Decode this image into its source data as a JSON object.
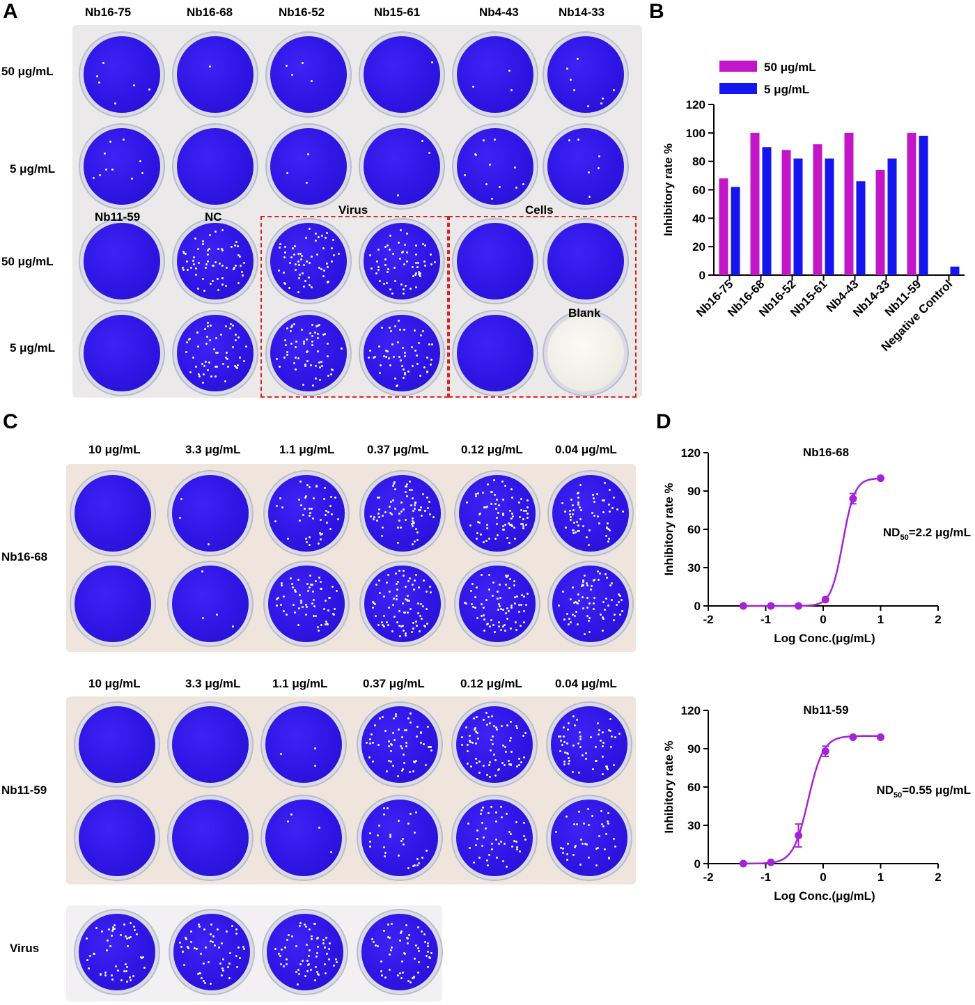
{
  "panel_letters": {
    "a": "A",
    "b": "B",
    "c": "C",
    "d": "D"
  },
  "panel_a": {
    "column_headers": [
      "Nb16-75",
      "Nb16-68",
      "Nb16-52",
      "Nb15-61",
      "Nb4-43",
      "Nb14-33"
    ],
    "row_labels": [
      "50 μg/mL",
      "5 μg/mL",
      "50 μg/mL",
      "5 μg/mL"
    ],
    "inner_labels": {
      "nb11": "Nb11-59",
      "nc": "NC",
      "virus": "Virus",
      "cells": "Cells",
      "blank": "Blank"
    }
  },
  "panel_c": {
    "conc_headers": [
      "10 μg/mL",
      "3.3 μg/mL",
      "1.1 μg/mL",
      "0.37 μg/mL",
      "0.12 μg/mL",
      "0.04 μg/mL"
    ],
    "row_labels": {
      "nb16": "Nb16-68",
      "nb11": "Nb11-59",
      "virus": "Virus"
    }
  },
  "colors": {
    "magenta": "#c316c9",
    "blue": "#1515f0",
    "curve": "#a323d6",
    "dash": "#e02020"
  },
  "chart_data": [
    {
      "type": "bar",
      "categories": [
        "Nb16-75",
        "Nb16-68",
        "Nb16-52",
        "Nb15-61",
        "Nb4-43",
        "Nb14-33",
        "Nb11-59",
        "Negative Control"
      ],
      "series": [
        {
          "name": "50 μg/mL",
          "values": [
            68,
            100,
            88,
            92,
            100,
            74,
            100,
            0
          ]
        },
        {
          "name": "5 μg/mL",
          "values": [
            62,
            90,
            82,
            82,
            66,
            82,
            98,
            6
          ]
        }
      ],
      "ylabel": "Inhibitory rate %",
      "ylim": [
        0,
        120
      ],
      "yticks": [
        0,
        20,
        40,
        60,
        80,
        100,
        120
      ]
    },
    {
      "type": "scatter",
      "title": "Nb16-68",
      "xlabel": "Log Conc.(μg/mL)",
      "ylabel": "Inhibitory rate %",
      "xlim": [
        -2,
        2
      ],
      "ylim": [
        0,
        120
      ],
      "xticks": [
        -2,
        -1,
        0,
        1,
        2
      ],
      "yticks": [
        0,
        30,
        60,
        90,
        120
      ],
      "annotation": {
        "nd": "ND",
        "sub": "50",
        "rest": "=2.2 μg/mL"
      },
      "ed50_log": 0.342,
      "hill": 4.2,
      "points": [
        {
          "x": -1.39,
          "y": 0,
          "err": 0
        },
        {
          "x": -0.91,
          "y": 0,
          "err": 0
        },
        {
          "x": -0.43,
          "y": 0,
          "err": 0
        },
        {
          "x": 0.04,
          "y": 5,
          "err": 0
        },
        {
          "x": 0.52,
          "y": 84,
          "err": 4
        },
        {
          "x": 1.0,
          "y": 100,
          "err": 0
        }
      ]
    },
    {
      "type": "scatter",
      "title": "Nb11-59",
      "xlabel": "Log Conc.(μg/mL)",
      "ylabel": "Inhibitory rate %",
      "xlim": [
        -2,
        2
      ],
      "ylim": [
        0,
        120
      ],
      "xticks": [
        -2,
        -1,
        0,
        1,
        2
      ],
      "yticks": [
        0,
        30,
        60,
        90,
        120
      ],
      "annotation": {
        "nd": "ND",
        "sub": "50",
        "rest": "=0.55 μg/mL"
      },
      "ed50_log": -0.26,
      "hill": 3.3,
      "points": [
        {
          "x": -1.39,
          "y": 0,
          "err": 0
        },
        {
          "x": -0.91,
          "y": 1,
          "err": 0
        },
        {
          "x": -0.43,
          "y": 22,
          "err": 9
        },
        {
          "x": 0.04,
          "y": 88,
          "err": 4
        },
        {
          "x": 0.52,
          "y": 99,
          "err": 0
        },
        {
          "x": 1.0,
          "y": 99,
          "err": 0
        }
      ]
    }
  ]
}
